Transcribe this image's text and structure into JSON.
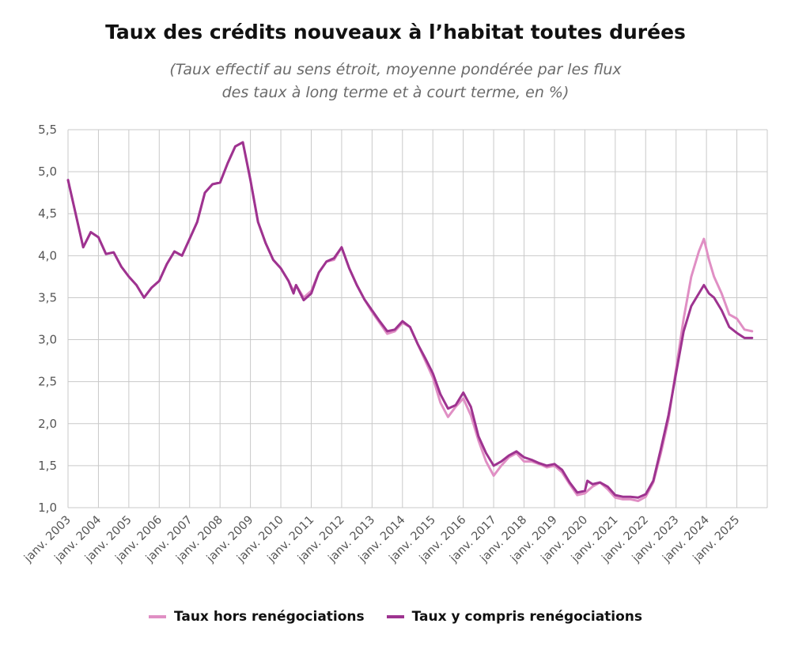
{
  "chart_data": {
    "type": "line",
    "title": "Taux des crédits nouveaux à l’habitat toutes durées",
    "subtitle_lines": [
      "(Taux effectif au sens étroit, moyenne pondérée par les flux",
      "des taux à long terme et à court terme, en %)"
    ],
    "xlabel": "",
    "ylabel": "",
    "ylim": [
      1.0,
      5.5
    ],
    "y_ticks": [
      "5,5",
      "5,0",
      "4,5",
      "4,0",
      "3,5",
      "3,0",
      "2,5",
      "2,0",
      "1,5",
      "1,0"
    ],
    "x_ticks": [
      "janv. 2003",
      "janv. 2004",
      "janv. 2005",
      "janv. 2006",
      "janv. 2007",
      "janv. 2008",
      "janv. 2009",
      "janv. 2010",
      "janv. 2011",
      "janv. 2012",
      "janv. 2013",
      "janv. 2014",
      "janv. 2015",
      "janv. 2016",
      "janv. 2017",
      "janv. 2018",
      "janv. 2019",
      "janv. 2020",
      "janv. 2021",
      "janv. 2022",
      "janv. 2023",
      "janv. 2024",
      "janv. 2025"
    ],
    "x_range": [
      "2003-01",
      "2025-08"
    ],
    "grid": true,
    "legend_position": "bottom",
    "series": [
      {
        "name": "Taux hors renégociations",
        "color": "#e08fc4",
        "points": [
          [
            "2003-01",
            4.9
          ],
          [
            "2003-04",
            4.5
          ],
          [
            "2003-07",
            4.1
          ],
          [
            "2003-10",
            4.28
          ],
          [
            "2004-01",
            4.22
          ],
          [
            "2004-04",
            4.02
          ],
          [
            "2004-07",
            4.04
          ],
          [
            "2004-10",
            3.87
          ],
          [
            "2005-01",
            3.75
          ],
          [
            "2005-04",
            3.65
          ],
          [
            "2005-07",
            3.5
          ],
          [
            "2005-10",
            3.62
          ],
          [
            "2006-01",
            3.7
          ],
          [
            "2006-04",
            3.9
          ],
          [
            "2006-07",
            4.05
          ],
          [
            "2006-10",
            4.0
          ],
          [
            "2007-01",
            4.2
          ],
          [
            "2007-04",
            4.4
          ],
          [
            "2007-07",
            4.75
          ],
          [
            "2007-10",
            4.85
          ],
          [
            "2008-01",
            4.87
          ],
          [
            "2008-04",
            5.1
          ],
          [
            "2008-07",
            5.3
          ],
          [
            "2008-10",
            5.35
          ],
          [
            "2009-01",
            4.9
          ],
          [
            "2009-04",
            4.4
          ],
          [
            "2009-07",
            4.15
          ],
          [
            "2009-10",
            3.95
          ],
          [
            "2010-01",
            3.85
          ],
          [
            "2010-04",
            3.7
          ],
          [
            "2010-06",
            3.58
          ],
          [
            "2010-07",
            3.65
          ],
          [
            "2010-10",
            3.5
          ],
          [
            "2011-01",
            3.58
          ],
          [
            "2011-04",
            3.8
          ],
          [
            "2011-07",
            3.93
          ],
          [
            "2011-10",
            3.95
          ],
          [
            "2012-01",
            4.1
          ],
          [
            "2012-04",
            3.85
          ],
          [
            "2012-07",
            3.65
          ],
          [
            "2012-10",
            3.48
          ],
          [
            "2013-01",
            3.33
          ],
          [
            "2013-04",
            3.2
          ],
          [
            "2013-07",
            3.07
          ],
          [
            "2013-10",
            3.1
          ],
          [
            "2014-01",
            3.2
          ],
          [
            "2014-04",
            3.15
          ],
          [
            "2014-07",
            2.95
          ],
          [
            "2014-10",
            2.75
          ],
          [
            "2015-01",
            2.55
          ],
          [
            "2015-04",
            2.25
          ],
          [
            "2015-07",
            2.08
          ],
          [
            "2015-10",
            2.2
          ],
          [
            "2016-01",
            2.3
          ],
          [
            "2016-04",
            2.1
          ],
          [
            "2016-07",
            1.8
          ],
          [
            "2016-10",
            1.55
          ],
          [
            "2017-01",
            1.38
          ],
          [
            "2017-04",
            1.5
          ],
          [
            "2017-07",
            1.6
          ],
          [
            "2017-10",
            1.65
          ],
          [
            "2018-01",
            1.55
          ],
          [
            "2018-04",
            1.55
          ],
          [
            "2018-07",
            1.52
          ],
          [
            "2018-10",
            1.48
          ],
          [
            "2019-01",
            1.5
          ],
          [
            "2019-04",
            1.42
          ],
          [
            "2019-07",
            1.28
          ],
          [
            "2019-10",
            1.15
          ],
          [
            "2020-01",
            1.17
          ],
          [
            "2020-04",
            1.25
          ],
          [
            "2020-07",
            1.3
          ],
          [
            "2020-10",
            1.22
          ],
          [
            "2021-01",
            1.12
          ],
          [
            "2021-04",
            1.1
          ],
          [
            "2021-07",
            1.1
          ],
          [
            "2021-10",
            1.08
          ],
          [
            "2022-01",
            1.13
          ],
          [
            "2022-04",
            1.3
          ],
          [
            "2022-07",
            1.65
          ],
          [
            "2022-10",
            2.05
          ],
          [
            "2023-01",
            2.65
          ],
          [
            "2023-04",
            3.25
          ],
          [
            "2023-07",
            3.75
          ],
          [
            "2023-10",
            4.05
          ],
          [
            "2023-12",
            4.2
          ],
          [
            "2024-02",
            3.95
          ],
          [
            "2024-04",
            3.75
          ],
          [
            "2024-07",
            3.55
          ],
          [
            "2024-10",
            3.3
          ],
          [
            "2025-01",
            3.25
          ],
          [
            "2025-04",
            3.12
          ],
          [
            "2025-07",
            3.1
          ]
        ]
      },
      {
        "name": "Taux y compris renégociations",
        "color": "#9e3390",
        "points": [
          [
            "2003-01",
            4.9
          ],
          [
            "2003-04",
            4.5
          ],
          [
            "2003-07",
            4.1
          ],
          [
            "2003-10",
            4.28
          ],
          [
            "2004-01",
            4.22
          ],
          [
            "2004-04",
            4.02
          ],
          [
            "2004-07",
            4.04
          ],
          [
            "2004-10",
            3.87
          ],
          [
            "2005-01",
            3.75
          ],
          [
            "2005-04",
            3.65
          ],
          [
            "2005-07",
            3.5
          ],
          [
            "2005-10",
            3.62
          ],
          [
            "2006-01",
            3.7
          ],
          [
            "2006-04",
            3.9
          ],
          [
            "2006-07",
            4.05
          ],
          [
            "2006-10",
            4.0
          ],
          [
            "2007-01",
            4.2
          ],
          [
            "2007-04",
            4.4
          ],
          [
            "2007-07",
            4.75
          ],
          [
            "2007-10",
            4.85
          ],
          [
            "2008-01",
            4.87
          ],
          [
            "2008-04",
            5.1
          ],
          [
            "2008-07",
            5.3
          ],
          [
            "2008-10",
            5.35
          ],
          [
            "2009-01",
            4.9
          ],
          [
            "2009-04",
            4.4
          ],
          [
            "2009-07",
            4.15
          ],
          [
            "2009-10",
            3.95
          ],
          [
            "2010-01",
            3.85
          ],
          [
            "2010-04",
            3.7
          ],
          [
            "2010-06",
            3.55
          ],
          [
            "2010-07",
            3.65
          ],
          [
            "2010-10",
            3.47
          ],
          [
            "2011-01",
            3.55
          ],
          [
            "2011-04",
            3.8
          ],
          [
            "2011-07",
            3.93
          ],
          [
            "2011-10",
            3.97
          ],
          [
            "2012-01",
            4.1
          ],
          [
            "2012-04",
            3.85
          ],
          [
            "2012-07",
            3.65
          ],
          [
            "2012-10",
            3.48
          ],
          [
            "2013-01",
            3.35
          ],
          [
            "2013-04",
            3.22
          ],
          [
            "2013-07",
            3.1
          ],
          [
            "2013-10",
            3.12
          ],
          [
            "2014-01",
            3.22
          ],
          [
            "2014-04",
            3.15
          ],
          [
            "2014-07",
            2.95
          ],
          [
            "2014-10",
            2.78
          ],
          [
            "2015-01",
            2.6
          ],
          [
            "2015-04",
            2.35
          ],
          [
            "2015-07",
            2.18
          ],
          [
            "2015-10",
            2.22
          ],
          [
            "2016-01",
            2.37
          ],
          [
            "2016-04",
            2.2
          ],
          [
            "2016-07",
            1.85
          ],
          [
            "2016-10",
            1.65
          ],
          [
            "2017-01",
            1.5
          ],
          [
            "2017-04",
            1.55
          ],
          [
            "2017-07",
            1.62
          ],
          [
            "2017-10",
            1.67
          ],
          [
            "2018-01",
            1.6
          ],
          [
            "2018-04",
            1.57
          ],
          [
            "2018-07",
            1.53
          ],
          [
            "2018-10",
            1.5
          ],
          [
            "2019-01",
            1.52
          ],
          [
            "2019-04",
            1.45
          ],
          [
            "2019-07",
            1.3
          ],
          [
            "2019-10",
            1.18
          ],
          [
            "2020-01",
            1.2
          ],
          [
            "2020-02",
            1.32
          ],
          [
            "2020-04",
            1.28
          ],
          [
            "2020-07",
            1.3
          ],
          [
            "2020-10",
            1.25
          ],
          [
            "2021-01",
            1.15
          ],
          [
            "2021-04",
            1.13
          ],
          [
            "2021-07",
            1.13
          ],
          [
            "2021-10",
            1.12
          ],
          [
            "2022-01",
            1.16
          ],
          [
            "2022-04",
            1.32
          ],
          [
            "2022-07",
            1.7
          ],
          [
            "2022-10",
            2.1
          ],
          [
            "2023-01",
            2.6
          ],
          [
            "2023-04",
            3.1
          ],
          [
            "2023-07",
            3.4
          ],
          [
            "2023-10",
            3.55
          ],
          [
            "2023-12",
            3.65
          ],
          [
            "2024-02",
            3.55
          ],
          [
            "2024-04",
            3.5
          ],
          [
            "2024-07",
            3.35
          ],
          [
            "2024-10",
            3.15
          ],
          [
            "2025-01",
            3.08
          ],
          [
            "2025-04",
            3.02
          ],
          [
            "2025-07",
            3.02
          ]
        ]
      }
    ]
  }
}
